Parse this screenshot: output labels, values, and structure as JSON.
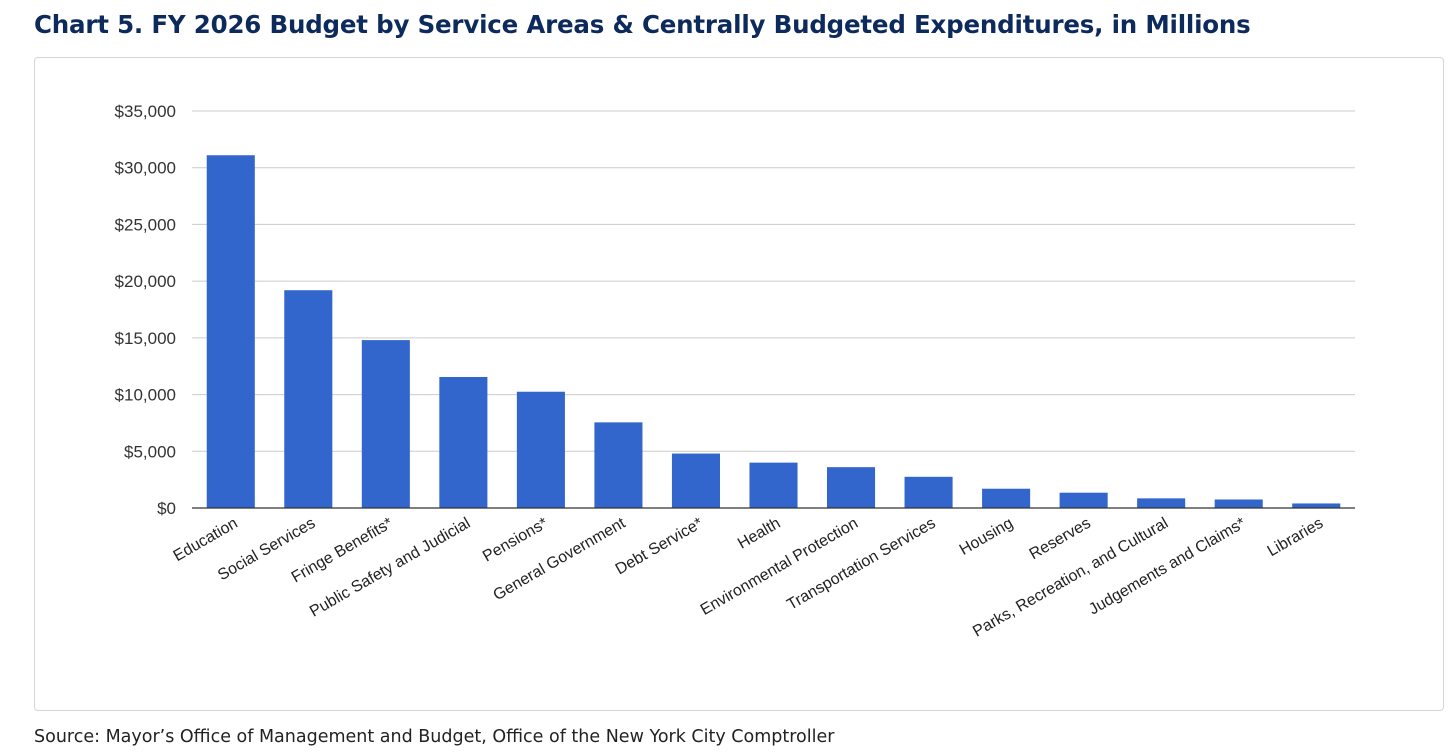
{
  "title": "Chart 5.  FY 2026 Budget by Service Areas & Centrally Budgeted Expenditures, in Millions",
  "source": "Source: Mayor’s Office of Management and Budget, Office of the New York City Comptroller",
  "colors": {
    "bar": "#3366cc",
    "title": "#0d2a5c",
    "grid": "#cccccc",
    "axis": "#333333"
  },
  "chart_data": {
    "type": "bar",
    "categories": [
      "Education",
      "Social Services",
      "Fringe Benefits*",
      "Public Safety and Judicial",
      "Pensions*",
      "General Government",
      "Debt Service*",
      "Health",
      "Environmental Protection",
      "Transportation Services",
      "Housing",
      "Reserves",
      "Parks, Recreation, and Cultural",
      "Judgements and Claims*",
      "Libraries"
    ],
    "values": [
      31100,
      19200,
      14800,
      11550,
      10250,
      7550,
      4800,
      4000,
      3600,
      2750,
      1700,
      1350,
      850,
      750,
      400
    ],
    "ylim": [
      0,
      35000
    ],
    "yticks": [
      0,
      5000,
      10000,
      15000,
      20000,
      25000,
      30000,
      35000
    ],
    "ytick_labels": [
      "$0",
      "$5,000",
      "$10,000",
      "$15,000",
      "$20,000",
      "$25,000",
      "$30,000",
      "$35,000"
    ],
    "xlabel": "",
    "ylabel": "",
    "grid": true,
    "legend": "none"
  }
}
